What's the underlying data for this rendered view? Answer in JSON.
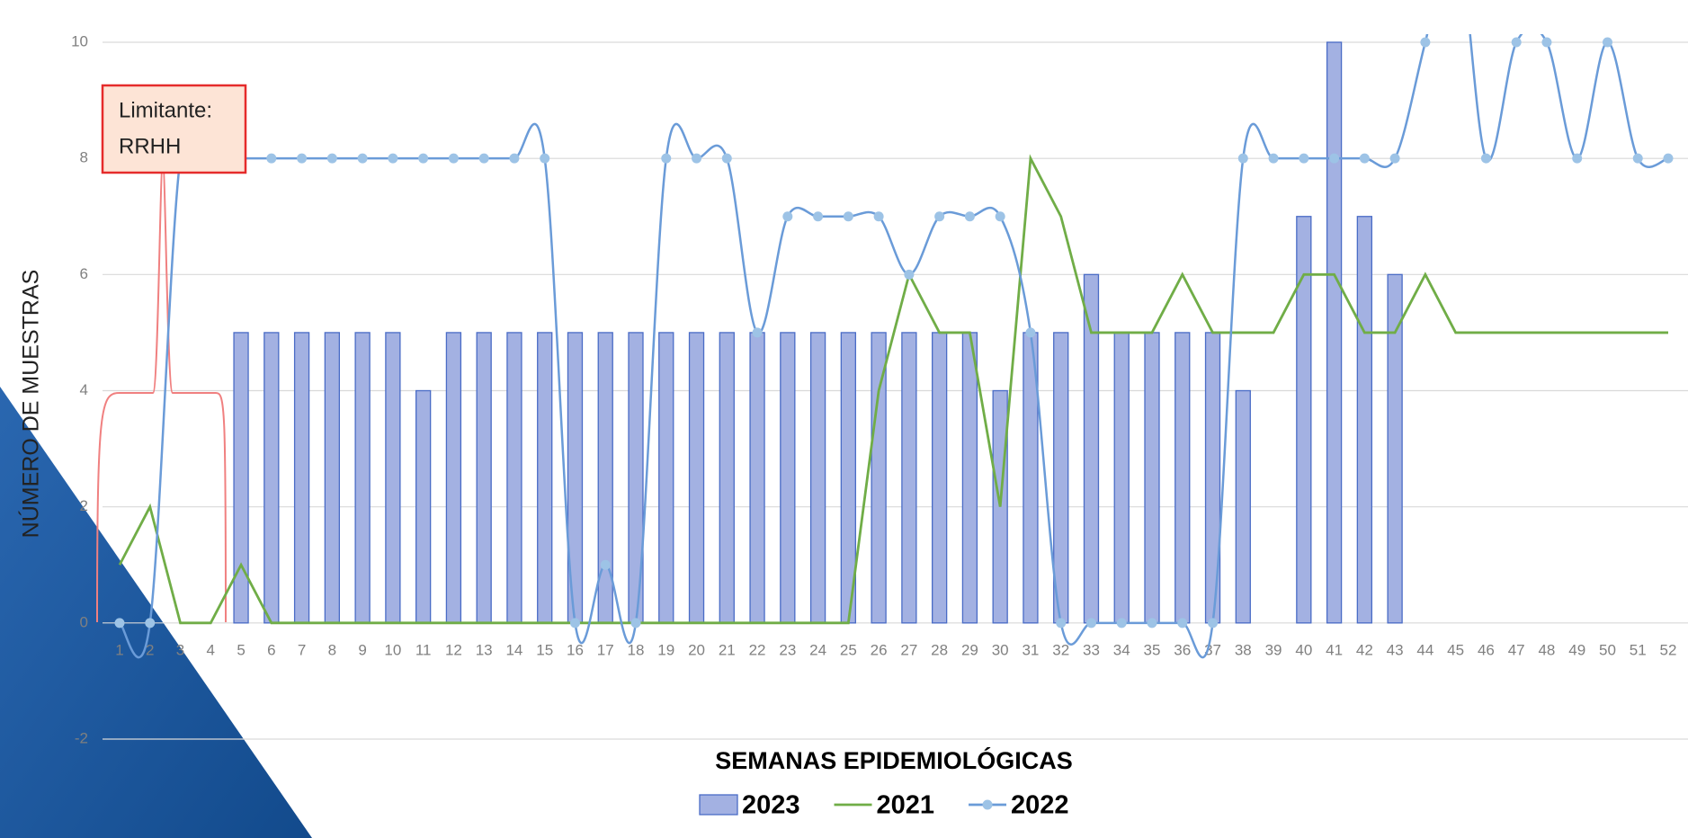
{
  "chart_data": {
    "type": "bar",
    "x_label": "SEMANAS EPIDEMIOLÓGICAS",
    "y_label": "NÚMERO DE MUESTRAS",
    "categories": [
      "1",
      "2",
      "3",
      "4",
      "5",
      "6",
      "7",
      "8",
      "9",
      "10",
      "11",
      "12",
      "13",
      "14",
      "15",
      "16",
      "17",
      "18",
      "19",
      "20",
      "21",
      "22",
      "23",
      "24",
      "25",
      "26",
      "27",
      "28",
      "29",
      "30",
      "31",
      "32",
      "33",
      "34",
      "35",
      "36",
      "37",
      "38",
      "39",
      "40",
      "41",
      "42",
      "43",
      "44",
      "45",
      "46",
      "47",
      "48",
      "49",
      "50",
      "51",
      "52"
    ],
    "ylim": [
      -2,
      10
    ],
    "yticks": [
      -2,
      0,
      2,
      4,
      6,
      8,
      10
    ],
    "grid": true,
    "annotation": [
      "Limitante:",
      "RRHH"
    ],
    "series": [
      {
        "name": "2023",
        "type": "bar",
        "color": "#a3b1e2",
        "edge": "#4a6cc6",
        "values": [
          null,
          null,
          null,
          null,
          5,
          5,
          5,
          5,
          5,
          5,
          4,
          5,
          5,
          5,
          5,
          5,
          5,
          5,
          5,
          5,
          5,
          5,
          5,
          5,
          5,
          5,
          5,
          5,
          5,
          4,
          5,
          5,
          6,
          5,
          5,
          5,
          5,
          4,
          null,
          7,
          10,
          7,
          6,
          null,
          null,
          null,
          null,
          null,
          null,
          null,
          null,
          null
        ]
      },
      {
        "name": "2021",
        "type": "line",
        "color": "#70ad47",
        "values": [
          1,
          2,
          0,
          0,
          1,
          0,
          0,
          0,
          0,
          0,
          0,
          0,
          0,
          0,
          0,
          0,
          0,
          0,
          0,
          0,
          0,
          0,
          0,
          0,
          0,
          4,
          6,
          5,
          5,
          2,
          8,
          7,
          5,
          5,
          5,
          6,
          5,
          5,
          5,
          6,
          6,
          5,
          5,
          6,
          5,
          5,
          5,
          5,
          5,
          5,
          5,
          5
        ]
      },
      {
        "name": "2022",
        "type": "smooth-line",
        "color": "#6a9bd8",
        "marker_color": "#9dc3e6",
        "values": [
          0,
          0,
          8,
          8,
          8,
          8,
          8,
          8,
          8,
          8,
          8,
          8,
          8,
          8,
          8,
          0,
          1,
          0,
          8,
          8,
          8,
          5,
          7,
          7,
          7,
          7,
          6,
          7,
          7,
          7,
          5,
          0,
          0,
          0,
          0,
          0,
          0,
          8,
          8,
          8,
          8,
          8,
          8,
          10,
          12,
          8,
          10,
          10,
          8,
          10,
          8,
          8
        ]
      }
    ]
  }
}
